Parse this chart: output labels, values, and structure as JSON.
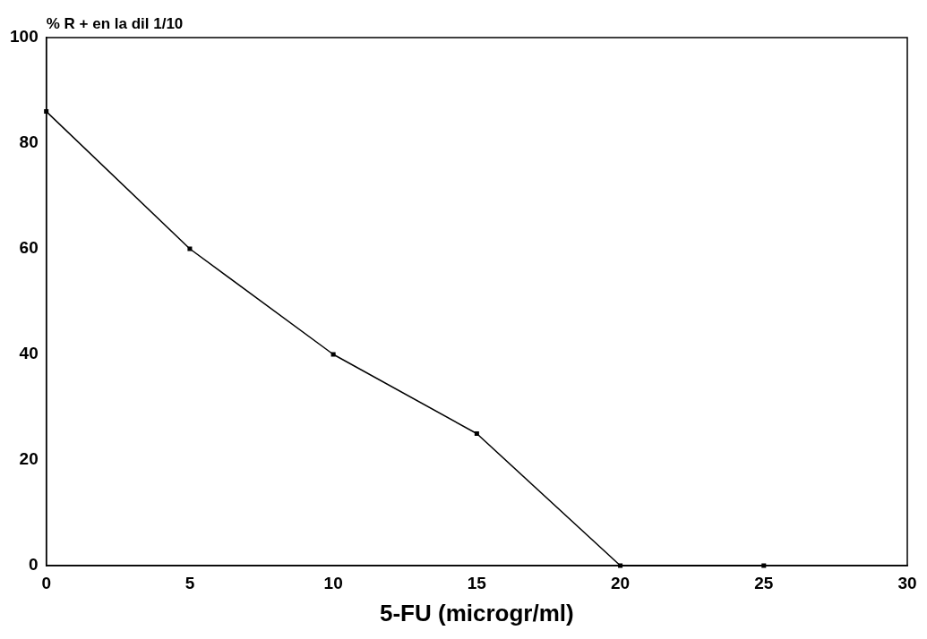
{
  "chart_data": {
    "type": "line",
    "xlabel": "5-FU (microgr/ml)",
    "ylabel": "% R + en la dil 1/10",
    "x": [
      0,
      5,
      10,
      15,
      20,
      25
    ],
    "series": [
      {
        "color": "#000000",
        "values": [
          86,
          60,
          40,
          25,
          0,
          0
        ]
      }
    ],
    "xlim": [
      0,
      30
    ],
    "xticks": [
      0,
      5,
      10,
      15,
      20,
      25,
      30
    ],
    "ylim": [
      0,
      100
    ],
    "yticks": [
      0,
      20,
      40,
      60,
      80,
      100
    ],
    "grid": false,
    "legend": false,
    "marker": "square",
    "line_style": "solid"
  }
}
